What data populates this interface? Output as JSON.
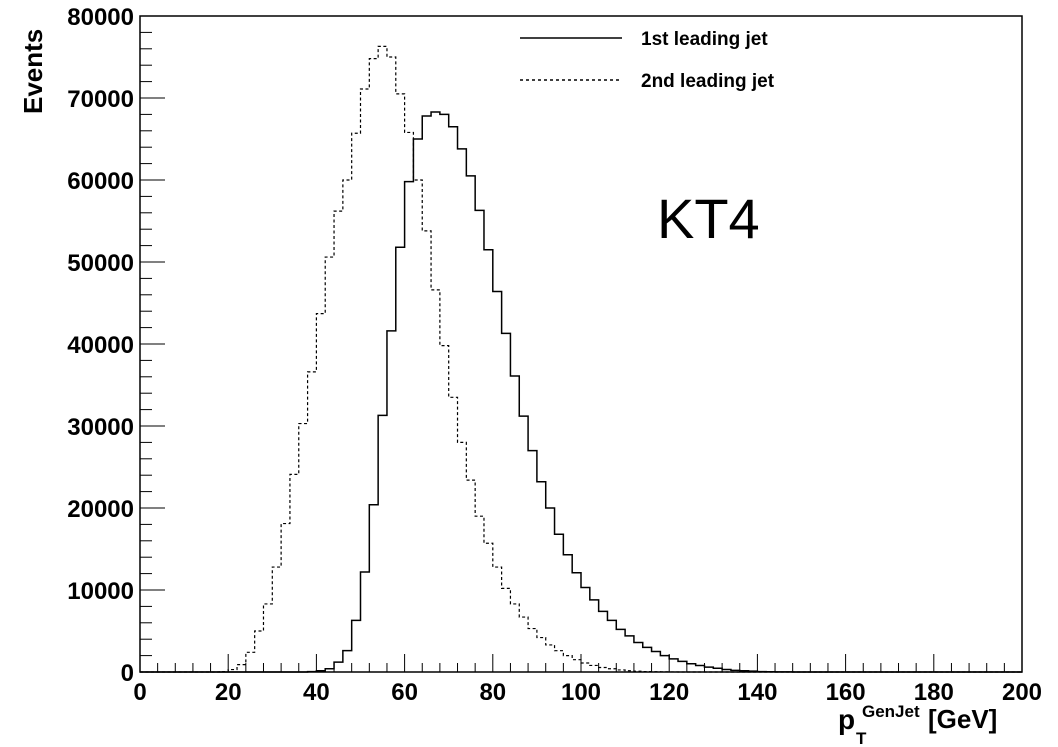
{
  "chart_data": {
    "type": "histogram",
    "title": "",
    "annotation": "KT4",
    "xlabel": {
      "base": "p",
      "sub": "T",
      "sup": "GenJet",
      "unit": "[GeV]"
    },
    "ylabel": "Events",
    "xlim": [
      0,
      200
    ],
    "ylim": [
      0,
      80000
    ],
    "x_ticks": [
      0,
      20,
      40,
      60,
      80,
      100,
      120,
      140,
      160,
      180,
      200
    ],
    "x_tick_labels": [
      "0",
      "20",
      "40",
      "60",
      "80",
      "100",
      "120",
      "140",
      "160",
      "180",
      "200"
    ],
    "y_ticks": [
      0,
      10000,
      20000,
      30000,
      40000,
      50000,
      60000,
      70000,
      80000
    ],
    "y_tick_labels": [
      "0",
      "10000",
      "20000",
      "30000",
      "40000",
      "50000",
      "60000",
      "70000",
      "80000"
    ],
    "bin_width": 2,
    "bin_start": 0,
    "legend_position": "top-center",
    "grid": false,
    "series": [
      {
        "name": "1st leading jet",
        "style": "solid",
        "values": [
          0,
          0,
          0,
          0,
          0,
          0,
          0,
          0,
          0,
          0,
          0,
          0,
          0,
          0,
          0,
          0,
          0,
          0,
          0,
          50,
          150,
          400,
          1200,
          2600,
          6300,
          12200,
          20400,
          31300,
          41600,
          51800,
          59800,
          65000,
          67800,
          68300,
          68000,
          66500,
          63800,
          60500,
          56300,
          51500,
          46400,
          41300,
          36100,
          31200,
          27000,
          23200,
          20000,
          16800,
          14300,
          12100,
          10300,
          8800,
          7400,
          6300,
          5200,
          4400,
          3600,
          3000,
          2500,
          2000,
          1600,
          1300,
          1000,
          800,
          600,
          450,
          300,
          200,
          150,
          100,
          50,
          30,
          20,
          10,
          5,
          0,
          0,
          0,
          0,
          0,
          0,
          0,
          0,
          0,
          0,
          0,
          0,
          0,
          0,
          0,
          0,
          0,
          0,
          0,
          0,
          0,
          0,
          0,
          0,
          0
        ]
      },
      {
        "name": "2nd leading jet",
        "style": "dashed",
        "values": [
          0,
          0,
          0,
          0,
          0,
          0,
          0,
          0,
          0,
          50,
          300,
          900,
          2400,
          5000,
          8300,
          12800,
          18100,
          24100,
          30300,
          36600,
          43700,
          50600,
          56200,
          60000,
          65700,
          71100,
          74800,
          76300,
          75000,
          70500,
          65800,
          60000,
          53800,
          46600,
          39800,
          33500,
          28000,
          23400,
          19000,
          15700,
          12800,
          10200,
          8300,
          6700,
          5300,
          4200,
          3300,
          2600,
          2000,
          1500,
          1100,
          800,
          550,
          400,
          250,
          150,
          100,
          50,
          30,
          20,
          10,
          0,
          0,
          0,
          0,
          0,
          0,
          0,
          0,
          0,
          0,
          0,
          0,
          0,
          0,
          0,
          0,
          0,
          0,
          0,
          0,
          0,
          0,
          0,
          0,
          0,
          0,
          0,
          0,
          0,
          0,
          0,
          0,
          0,
          0,
          0,
          0,
          0,
          0,
          0
        ]
      }
    ]
  }
}
